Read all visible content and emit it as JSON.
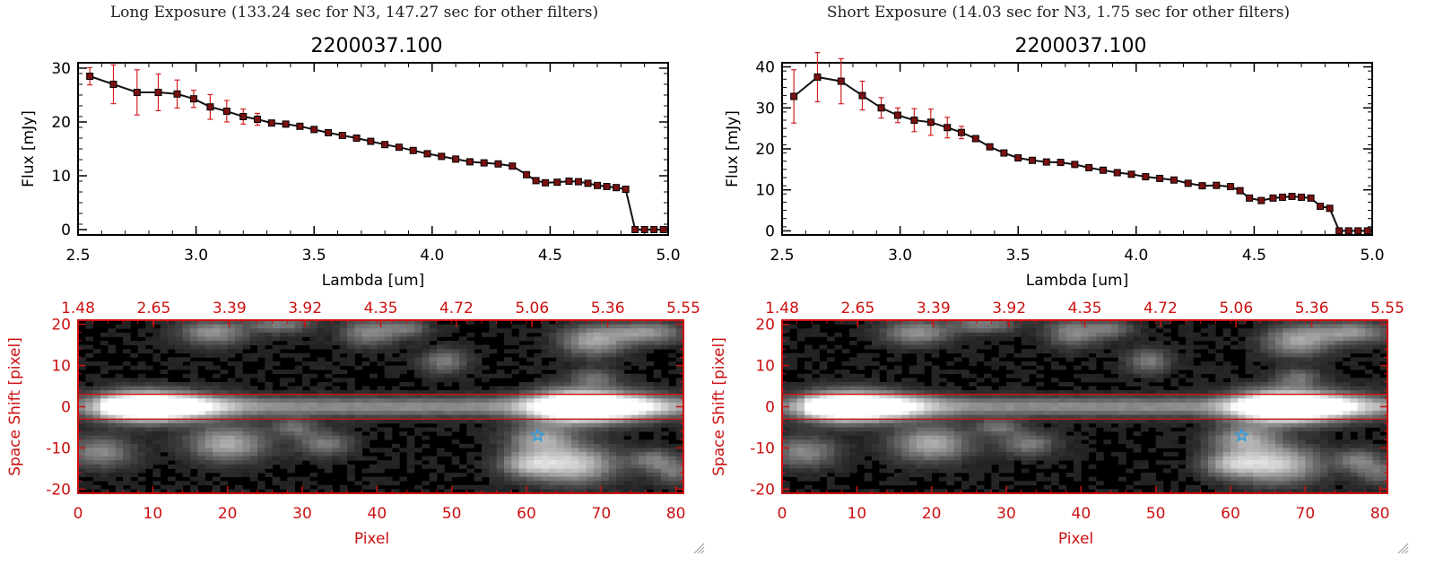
{
  "colors": {
    "axis": "#000000",
    "err": "#d42020",
    "spec_axis": "#cc1111",
    "star": "#2a9de0"
  },
  "panels": [
    {
      "exposure_title": "Long Exposure (133.24 sec for N3, 147.27 sec for other filters)",
      "chart_data": [
        {
          "type": "line",
          "title": "2200037.100",
          "xlabel": "Lambda [um]",
          "ylabel": "Flux [mJy]",
          "xlim": [
            2.5,
            5.0
          ],
          "ylim": [
            -1,
            31
          ],
          "xticks": [
            "2.5",
            "3.0",
            "3.5",
            "4.0",
            "4.5",
            "5.0"
          ],
          "yticks": [
            "0",
            "10",
            "20",
            "30"
          ],
          "x": [
            2.55,
            2.65,
            2.75,
            2.84,
            2.92,
            2.99,
            3.06,
            3.13,
            3.2,
            3.26,
            3.32,
            3.38,
            3.44,
            3.5,
            3.56,
            3.62,
            3.68,
            3.74,
            3.8,
            3.86,
            3.92,
            3.98,
            4.04,
            4.1,
            4.16,
            4.22,
            4.28,
            4.34,
            4.4,
            4.44,
            4.48,
            4.53,
            4.58,
            4.62,
            4.66,
            4.7,
            4.74,
            4.78,
            4.82,
            4.86,
            4.9,
            4.94,
            4.98
          ],
          "y": [
            28.5,
            27.0,
            25.5,
            25.5,
            25.2,
            24.3,
            22.8,
            22.0,
            21.0,
            20.5,
            19.8,
            19.6,
            19.2,
            18.6,
            18.0,
            17.5,
            17.0,
            16.4,
            15.8,
            15.3,
            14.7,
            14.1,
            13.6,
            13.1,
            12.6,
            12.4,
            12.2,
            11.8,
            10.2,
            9.1,
            8.7,
            8.8,
            9.0,
            8.9,
            8.6,
            8.2,
            8.0,
            7.8,
            7.5,
            0,
            0,
            0,
            0
          ],
          "err": [
            1.6,
            3.6,
            4.2,
            3.4,
            2.6,
            1.6,
            2.3,
            2.0,
            1.4,
            1.1,
            0.5,
            0.3,
            0.3,
            0.3,
            0.3,
            0.3,
            0.2,
            0.2,
            0.2,
            0.2,
            0.2,
            0.2,
            0.2,
            0.2,
            0.2,
            0.2,
            0.2,
            0.2,
            0.2,
            0.2,
            0.2,
            0.2,
            0.2,
            0.2,
            0.2,
            0.2,
            0.2,
            0.2,
            0.2,
            0,
            0,
            0,
            0
          ]
        },
        {
          "type": "heatmap",
          "xlabel": "Pixel",
          "ylabel": "Space Shift [pixel]",
          "xlim": [
            0,
            81
          ],
          "ylim": [
            -21,
            21
          ],
          "xticks": [
            "0",
            "10",
            "20",
            "30",
            "40",
            "50",
            "60",
            "70",
            "80"
          ],
          "yticks": [
            "-20",
            "-10",
            "0",
            "10",
            "20"
          ],
          "top_ticks": [
            "1.48",
            "2.65",
            "3.39",
            "3.92",
            "4.35",
            "4.72",
            "5.06",
            "5.36",
            "5.55"
          ],
          "band": [
            -3,
            3
          ],
          "star": [
            61.5,
            -7
          ],
          "sources": [
            [
              8,
              0,
              4,
              2.4,
              1.0
            ],
            [
              13,
              0,
              5,
              2.2,
              0.75
            ],
            [
              66,
              0,
              4,
              2.6,
              1.0
            ],
            [
              71,
              0,
              5,
              2.4,
              0.85
            ],
            [
              20,
              -9,
              3.5,
              2.8,
              0.55
            ],
            [
              3,
              -11,
              3,
              2.5,
              0.4
            ],
            [
              33,
              -9,
              2.5,
              2,
              0.35
            ],
            [
              29,
              -5,
              2,
              1.5,
              0.3
            ],
            [
              18,
              18,
              3,
              2,
              0.45
            ],
            [
              27,
              20,
              3,
              1.5,
              0.35
            ],
            [
              39,
              18,
              2.5,
              2.2,
              0.4
            ],
            [
              44,
              19,
              2,
              1.5,
              0.3
            ],
            [
              49,
              11,
              2,
              2,
              0.35
            ],
            [
              62,
              -8,
              3,
              2.5,
              0.5
            ],
            [
              66,
              -14,
              4,
              3,
              0.7
            ],
            [
              60,
              -14,
              2.5,
              2,
              0.45
            ],
            [
              69,
              16,
              3,
              2.5,
              0.5
            ],
            [
              76,
              18,
              3.5,
              1.8,
              0.45
            ],
            [
              80,
              -16,
              2,
              2,
              0.3
            ],
            [
              69,
              7,
              2,
              1.5,
              0.3
            ],
            [
              77,
              -13,
              2,
              1.8,
              0.35
            ]
          ]
        }
      ]
    },
    {
      "exposure_title": "Short Exposure (14.03 sec for N3, 1.75 sec for other filters)",
      "chart_data": [
        {
          "type": "line",
          "title": "2200037.100",
          "xlabel": "Lambda [um]",
          "ylabel": "Flux [mJy]",
          "xlim": [
            2.5,
            5.0
          ],
          "ylim": [
            -1,
            41
          ],
          "xticks": [
            "2.5",
            "3.0",
            "3.5",
            "4.0",
            "4.5",
            "5.0"
          ],
          "yticks": [
            "0",
            "10",
            "20",
            "30",
            "40"
          ],
          "x": [
            2.55,
            2.65,
            2.75,
            2.84,
            2.92,
            2.99,
            3.06,
            3.13,
            3.2,
            3.26,
            3.32,
            3.38,
            3.44,
            3.5,
            3.56,
            3.62,
            3.68,
            3.74,
            3.8,
            3.86,
            3.92,
            3.98,
            4.04,
            4.1,
            4.16,
            4.22,
            4.28,
            4.34,
            4.4,
            4.44,
            4.48,
            4.53,
            4.58,
            4.62,
            4.66,
            4.7,
            4.74,
            4.78,
            4.82,
            4.86,
            4.9,
            4.94,
            4.98
          ],
          "y": [
            32.8,
            37.5,
            36.5,
            33.0,
            30.0,
            28.2,
            27.0,
            26.5,
            25.2,
            24.0,
            22.5,
            20.5,
            19.0,
            17.8,
            17.2,
            16.8,
            16.7,
            16.2,
            15.4,
            14.8,
            14.2,
            13.8,
            13.2,
            12.8,
            12.4,
            11.6,
            11.0,
            11.1,
            10.8,
            9.8,
            8.0,
            7.4,
            8.0,
            8.2,
            8.4,
            8.2,
            8.0,
            6.0,
            5.5,
            0,
            0,
            0,
            0
          ],
          "err": [
            6.5,
            6.0,
            5.5,
            3.5,
            2.5,
            1.8,
            2.8,
            3.2,
            2.5,
            1.5,
            0.4,
            0.3,
            0.3,
            0.3,
            0.3,
            0.3,
            0.3,
            0.3,
            0.3,
            0.3,
            0.3,
            0.3,
            0.3,
            0.3,
            0.3,
            0.3,
            0.3,
            0.3,
            0.3,
            0.3,
            0.3,
            0.3,
            0.3,
            0.3,
            0.3,
            0.3,
            0.3,
            0.3,
            0.3,
            0,
            0,
            0,
            0
          ]
        },
        {
          "type": "heatmap",
          "xlabel": "Pixel",
          "ylabel": "Space Shift [pixel]",
          "xlim": [
            0,
            81
          ],
          "ylim": [
            -21,
            21
          ],
          "xticks": [
            "0",
            "10",
            "20",
            "30",
            "40",
            "50",
            "60",
            "70",
            "80"
          ],
          "yticks": [
            "-20",
            "-10",
            "0",
            "10",
            "20"
          ],
          "top_ticks": [
            "1.48",
            "2.65",
            "3.39",
            "3.92",
            "4.35",
            "4.72",
            "5.06",
            "5.36",
            "5.55"
          ],
          "band": [
            -3,
            3
          ],
          "star": [
            61.5,
            -7
          ],
          "sources": [
            [
              8,
              0,
              4,
              2.4,
              1.0
            ],
            [
              13,
              0,
              5,
              2.2,
              0.75
            ],
            [
              66,
              0,
              4,
              2.6,
              1.0
            ],
            [
              71,
              0,
              5,
              2.4,
              0.85
            ],
            [
              20,
              -9,
              3.5,
              2.8,
              0.55
            ],
            [
              3,
              -11,
              3,
              2.5,
              0.4
            ],
            [
              33,
              -9,
              2.5,
              2,
              0.35
            ],
            [
              29,
              -5,
              2,
              1.5,
              0.3
            ],
            [
              18,
              18,
              3,
              2,
              0.45
            ],
            [
              27,
              20,
              3,
              1.5,
              0.35
            ],
            [
              39,
              18,
              2.5,
              2.2,
              0.4
            ],
            [
              44,
              19,
              2,
              1.5,
              0.3
            ],
            [
              49,
              11,
              2,
              2,
              0.35
            ],
            [
              62,
              -8,
              3,
              2.5,
              0.5
            ],
            [
              66,
              -14,
              4,
              3,
              0.7
            ],
            [
              60,
              -14,
              2.5,
              2,
              0.45
            ],
            [
              69,
              16,
              3,
              2.5,
              0.5
            ],
            [
              76,
              18,
              3.5,
              1.8,
              0.45
            ],
            [
              80,
              -16,
              2,
              2,
              0.3
            ],
            [
              69,
              7,
              2,
              1.5,
              0.3
            ],
            [
              77,
              -13,
              2,
              1.8,
              0.35
            ]
          ]
        }
      ]
    }
  ]
}
